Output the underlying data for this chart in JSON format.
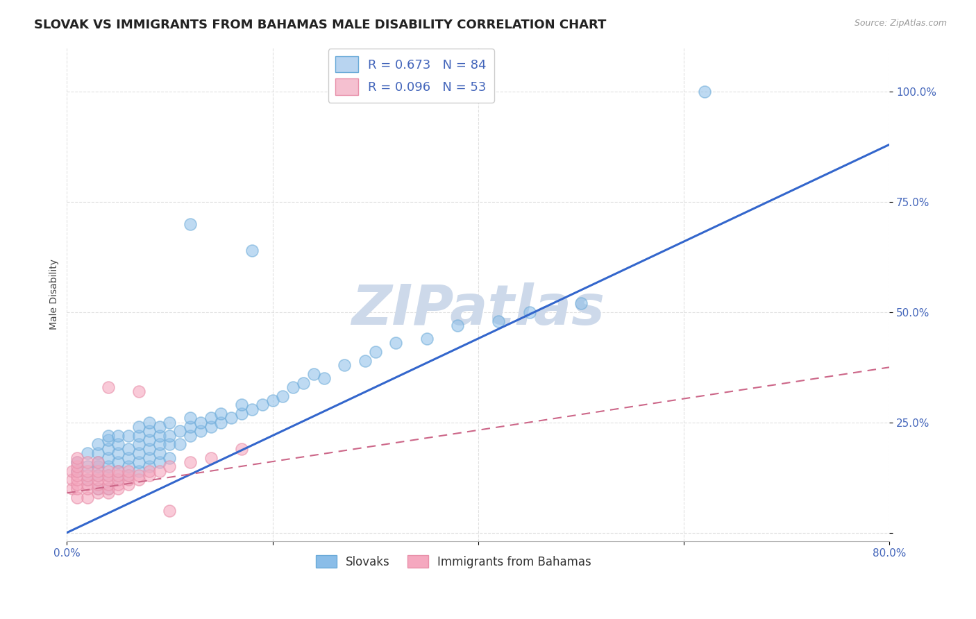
{
  "title": "SLOVAK VS IMMIGRANTS FROM BAHAMAS MALE DISABILITY CORRELATION CHART",
  "source": "Source: ZipAtlas.com",
  "ylabel": "Male Disability",
  "watermark": "ZIPatlas",
  "xlim": [
    0.0,
    0.8
  ],
  "ylim": [
    -0.02,
    1.1
  ],
  "xticks": [
    0.0,
    0.2,
    0.4,
    0.6,
    0.8
  ],
  "xticklabels": [
    "0.0%",
    "",
    "",
    "",
    "80.0%"
  ],
  "yticks": [
    0.0,
    0.25,
    0.5,
    0.75,
    1.0
  ],
  "yticklabels": [
    "",
    "25.0%",
    "50.0%",
    "75.0%",
    "100.0%"
  ],
  "series1_name": "Slovaks",
  "series1_color": "#8abde8",
  "series1_edge_color": "#6aaad8",
  "series1_line_color": "#3366cc",
  "series2_name": "Immigrants from Bahamas",
  "series2_color": "#f5a8bf",
  "series2_edge_color": "#e890aa",
  "series2_line_color": "#cc6688",
  "legend_box1_face": "#b8d4f0",
  "legend_box1_edge": "#6aaad8",
  "legend_box2_face": "#f5c0d0",
  "legend_box2_edge": "#e890aa",
  "legend_text_color": "#4466bb",
  "blue_line_x": [
    0.0,
    0.8
  ],
  "blue_line_y": [
    0.0,
    0.88
  ],
  "pink_line_x": [
    0.0,
    0.8
  ],
  "pink_line_y": [
    0.09,
    0.375
  ],
  "blue_points_x": [
    0.01,
    0.01,
    0.02,
    0.02,
    0.02,
    0.03,
    0.03,
    0.03,
    0.03,
    0.03,
    0.03,
    0.04,
    0.04,
    0.04,
    0.04,
    0.04,
    0.04,
    0.04,
    0.05,
    0.05,
    0.05,
    0.05,
    0.05,
    0.05,
    0.06,
    0.06,
    0.06,
    0.06,
    0.06,
    0.07,
    0.07,
    0.07,
    0.07,
    0.07,
    0.07,
    0.08,
    0.08,
    0.08,
    0.08,
    0.08,
    0.08,
    0.09,
    0.09,
    0.09,
    0.09,
    0.09,
    0.1,
    0.1,
    0.1,
    0.1,
    0.11,
    0.11,
    0.12,
    0.12,
    0.12,
    0.13,
    0.13,
    0.14,
    0.14,
    0.15,
    0.15,
    0.16,
    0.17,
    0.17,
    0.18,
    0.19,
    0.2,
    0.21,
    0.22,
    0.23,
    0.24,
    0.25,
    0.27,
    0.29,
    0.3,
    0.32,
    0.35,
    0.38,
    0.42,
    0.45,
    0.12,
    0.18,
    0.5,
    0.62
  ],
  "blue_points_y": [
    0.14,
    0.16,
    0.12,
    0.15,
    0.18,
    0.1,
    0.13,
    0.15,
    0.16,
    0.18,
    0.2,
    0.1,
    0.13,
    0.15,
    0.17,
    0.19,
    0.21,
    0.22,
    0.12,
    0.14,
    0.16,
    0.18,
    0.2,
    0.22,
    0.13,
    0.15,
    0.17,
    0.19,
    0.22,
    0.14,
    0.16,
    0.18,
    0.2,
    0.22,
    0.24,
    0.15,
    0.17,
    0.19,
    0.21,
    0.23,
    0.25,
    0.16,
    0.18,
    0.2,
    0.22,
    0.24,
    0.17,
    0.2,
    0.22,
    0.25,
    0.2,
    0.23,
    0.22,
    0.24,
    0.26,
    0.23,
    0.25,
    0.24,
    0.26,
    0.25,
    0.27,
    0.26,
    0.27,
    0.29,
    0.28,
    0.29,
    0.3,
    0.31,
    0.33,
    0.34,
    0.36,
    0.35,
    0.38,
    0.39,
    0.41,
    0.43,
    0.44,
    0.47,
    0.48,
    0.5,
    0.7,
    0.64,
    0.52,
    1.0
  ],
  "pink_points_x": [
    0.005,
    0.005,
    0.005,
    0.01,
    0.01,
    0.01,
    0.01,
    0.01,
    0.01,
    0.01,
    0.01,
    0.01,
    0.02,
    0.02,
    0.02,
    0.02,
    0.02,
    0.02,
    0.02,
    0.03,
    0.03,
    0.03,
    0.03,
    0.03,
    0.03,
    0.03,
    0.04,
    0.04,
    0.04,
    0.04,
    0.04,
    0.04,
    0.05,
    0.05,
    0.05,
    0.05,
    0.05,
    0.06,
    0.06,
    0.06,
    0.06,
    0.07,
    0.07,
    0.08,
    0.08,
    0.09,
    0.1,
    0.12,
    0.14,
    0.17,
    0.04,
    0.07,
    0.1
  ],
  "pink_points_y": [
    0.1,
    0.12,
    0.14,
    0.08,
    0.1,
    0.11,
    0.12,
    0.13,
    0.14,
    0.15,
    0.16,
    0.17,
    0.08,
    0.1,
    0.11,
    0.12,
    0.13,
    0.14,
    0.16,
    0.09,
    0.1,
    0.11,
    0.12,
    0.13,
    0.14,
    0.16,
    0.09,
    0.1,
    0.11,
    0.12,
    0.13,
    0.14,
    0.1,
    0.11,
    0.12,
    0.13,
    0.14,
    0.11,
    0.12,
    0.13,
    0.14,
    0.12,
    0.13,
    0.13,
    0.14,
    0.14,
    0.15,
    0.16,
    0.17,
    0.19,
    0.33,
    0.32,
    0.05
  ],
  "background_color": "#ffffff",
  "grid_color": "#dddddd",
  "title_fontsize": 13,
  "axis_label_fontsize": 10,
  "tick_fontsize": 11,
  "tick_color": "#4466bb",
  "watermark_color": "#cdd9ea",
  "watermark_fontsize": 58
}
